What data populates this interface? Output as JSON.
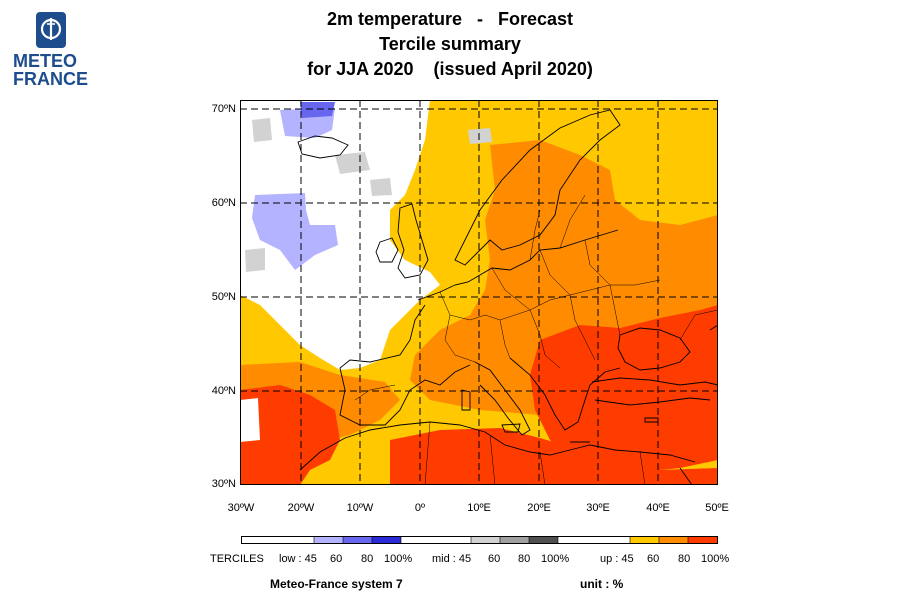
{
  "logo": {
    "line1": "METEO",
    "line2": "FRANCE",
    "color": "#1d4d8c"
  },
  "title": {
    "line1": "2m temperature   -   Forecast",
    "line2": "Tercile summary",
    "line3": "for JJA 2020    (issued April 2020)"
  },
  "map": {
    "lat_labels": [
      "70ºN",
      "60ºN",
      "50ºN",
      "40ºN",
      "30ºN"
    ],
    "lon_labels": [
      "30ºW",
      "20ºW",
      "10ºW",
      "0º",
      "10ºE",
      "20ºE",
      "30ºE",
      "40ºE",
      "50ºE"
    ],
    "lat_range": [
      30,
      71
    ],
    "lon_range": [
      -30,
      50
    ],
    "gridlines": "dashed",
    "colors": {
      "up45": "#ffc800",
      "up60": "#ff8c00",
      "up80": "#ff3c00",
      "low45": "#b3b3ff",
      "low60": "#6666ee",
      "low80": "#2a2ad8",
      "mid45": "#d2d2d2",
      "mid60": "#a0a0a0",
      "mid80": "#505050",
      "none": "#ffffff"
    }
  },
  "legend": {
    "terciles_label": "TERCILES",
    "low_label": "low : 45",
    "low_ticks": [
      "60",
      "80",
      "100%"
    ],
    "mid_label": "mid : 45",
    "mid_ticks": [
      "60",
      "80",
      "100%"
    ],
    "up_label": "up : 45",
    "up_ticks": [
      "60",
      "80",
      "100%"
    ]
  },
  "footer": {
    "model": "Meteo-France system 7",
    "unit": "unit : %"
  }
}
